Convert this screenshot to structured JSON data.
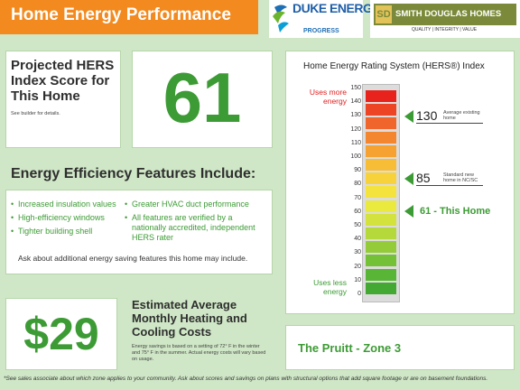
{
  "header": {
    "title": "Home Energy Performance",
    "duke_name": "DUKE ENERGY.",
    "duke_sub": "PROGRESS",
    "builder_name": "SMITH DOUGLAS HOMES",
    "builder_tagline": "QUALITY | INTEGRITY | VALUE"
  },
  "hers": {
    "label": "Projected HERS Index Score for This Home",
    "note": "See builder for details.",
    "score": "61"
  },
  "features": {
    "title": "Energy Efficiency Features Include:",
    "col1": [
      "Increased insulation values",
      "High-efficiency windows",
      "Tighter building shell"
    ],
    "col2": [
      "Greater HVAC duct performance",
      "All features are verified by a nationally accredited, independent HERS rater"
    ],
    "note": "Ask about additional energy saving features this home may include."
  },
  "savings": {
    "value": "$29",
    "title": "Estimated Average Monthly Heating and Cooling Costs",
    "desc": "Energy savings is based on a setting of 72° F in the winter and 75° F in the summer. Actual energy costs will vary based on usage."
  },
  "chart": {
    "title": "Home Energy Rating System (HERS®) Index",
    "ticks": [
      "150",
      "140",
      "130",
      "120",
      "110",
      "100",
      "90",
      "80",
      "70",
      "60",
      "50",
      "40",
      "30",
      "20",
      "10",
      "0"
    ],
    "uses_more": "Uses more energy",
    "uses_less": "Uses less energy",
    "segment_colors": [
      "#e8231d",
      "#ec4424",
      "#f0652b",
      "#f4862f",
      "#f6a233",
      "#f8bd36",
      "#f8d23a",
      "#f5e33d",
      "#e9e93e",
      "#d3e23c",
      "#b5d83b",
      "#94cc39",
      "#74c037",
      "#58b535",
      "#44a933",
      "#389d31"
    ],
    "markers": [
      {
        "value": 130,
        "label": "130",
        "desc": "Average existing home"
      },
      {
        "value": 85,
        "label": "85",
        "desc": "Standard new home in NC/SC"
      }
    ],
    "this_home_value": 61,
    "this_home_label": "61 - This Home"
  },
  "plan": {
    "label": "The Pruitt - Zone 3"
  },
  "footnote": "*See sales associate about which zone applies to your community.  Ask about scores and savings on plans with structural options that add square footage or are on basement foundations."
}
